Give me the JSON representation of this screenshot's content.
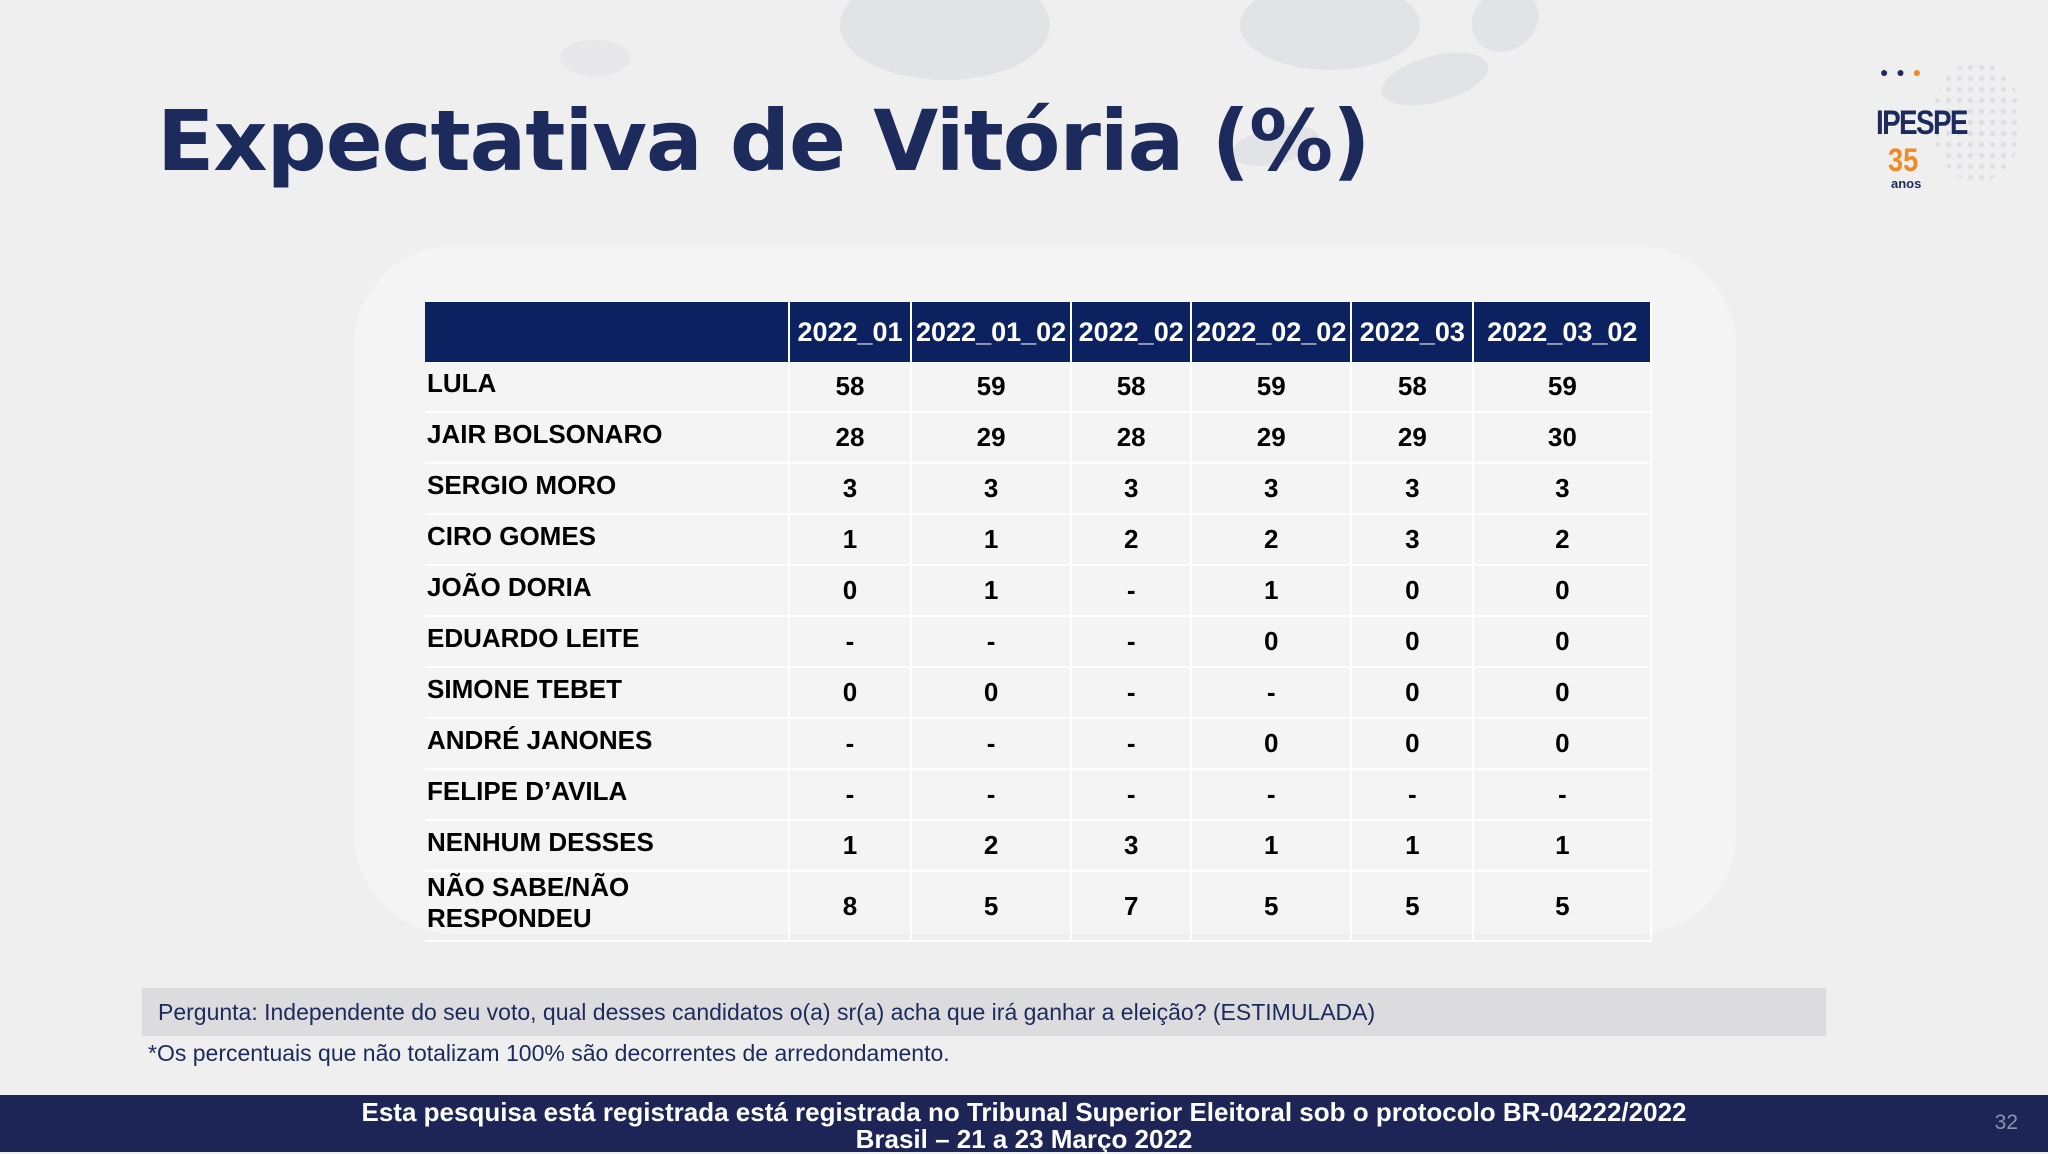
{
  "title": "Expectativa de Vitória (%)",
  "logo": {
    "name": "IPESPE",
    "number": "35",
    "sub": "anos"
  },
  "table": {
    "headers": [
      "",
      "2022_01",
      "2022_01_02",
      "2022_02",
      "2022_02_02",
      "2022_03",
      "2022_03_02"
    ],
    "rows": [
      {
        "name": "LULA",
        "values": [
          "58",
          "59",
          "58",
          "59",
          "58",
          "59"
        ]
      },
      {
        "name": "JAIR BOLSONARO",
        "values": [
          "28",
          "29",
          "28",
          "29",
          "29",
          "30"
        ]
      },
      {
        "name": "SERGIO MORO",
        "values": [
          "3",
          "3",
          "3",
          "3",
          "3",
          "3"
        ]
      },
      {
        "name": "CIRO GOMES",
        "values": [
          "1",
          "1",
          "2",
          "2",
          "3",
          "2"
        ]
      },
      {
        "name": "JOÃO DORIA",
        "values": [
          "0",
          "1",
          "-",
          "1",
          "0",
          "0"
        ]
      },
      {
        "name": "EDUARDO LEITE",
        "values": [
          "-",
          "-",
          "-",
          "0",
          "0",
          "0"
        ]
      },
      {
        "name": "SIMONE TEBET",
        "values": [
          "0",
          "0",
          "-",
          "-",
          "0",
          "0"
        ]
      },
      {
        "name": "ANDRÉ JANONES",
        "values": [
          "-",
          "-",
          "-",
          "0",
          "0",
          "0"
        ]
      },
      {
        "name": "FELIPE D’AVILA",
        "values": [
          "-",
          "-",
          "-",
          "-",
          "-",
          "-"
        ]
      },
      {
        "name": "NENHUM DESSES",
        "values": [
          "1",
          "2",
          "3",
          "1",
          "1",
          "1"
        ]
      },
      {
        "name": "NÃO SABE/NÃO RESPONDEU",
        "values": [
          "8",
          "5",
          "7",
          "5",
          "5",
          "5"
        ]
      }
    ]
  },
  "question": "Pergunta: Independente do seu voto, qual desses candidatos o(a) sr(a) acha que irá ganhar a eleição? (ESTIMULADA)",
  "footnote": "*Os percentuais que não totalizam 100% são decorrentes de arredondamento.",
  "footer": {
    "line1": "Esta pesquisa está registrada está registrada no Tribunal Superior Eleitoral sob o protocolo BR-04222/2022",
    "line2": "Brasil – 21 a 23 Março 2022",
    "page_number": "32"
  }
}
